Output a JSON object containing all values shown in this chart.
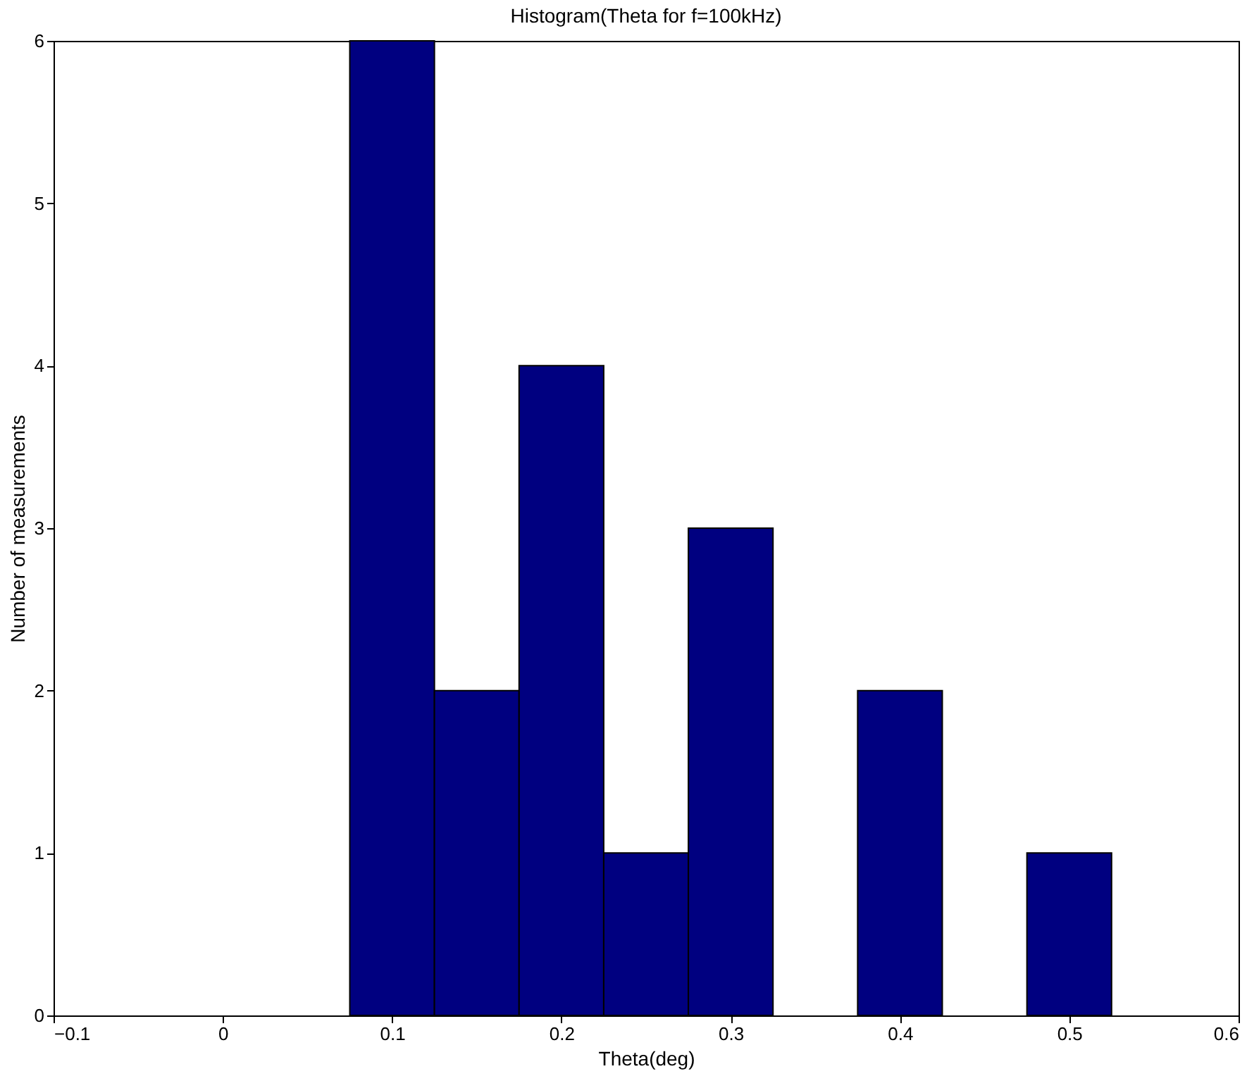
{
  "chart_data": {
    "type": "histogram",
    "title": "Histogram(Theta for f=100kHz)",
    "xlabel": "Theta(deg)",
    "ylabel": "Number of measurements",
    "bins": [
      0.075,
      0.125,
      0.175,
      0.225,
      0.275,
      0.325,
      0.375,
      0.425,
      0.475,
      0.525
    ],
    "values": [
      6,
      2,
      4,
      1,
      3,
      0,
      2,
      0,
      1
    ],
    "color": "#000080",
    "xlim": [
      -0.1,
      0.6
    ],
    "xticks": [
      -0.1,
      0,
      0.1,
      0.2,
      0.3,
      0.4,
      0.5,
      0.6
    ],
    "ylim": [
      0,
      6
    ],
    "yticks": [
      0,
      1,
      2,
      3,
      4,
      5,
      6
    ],
    "grid": false
  }
}
